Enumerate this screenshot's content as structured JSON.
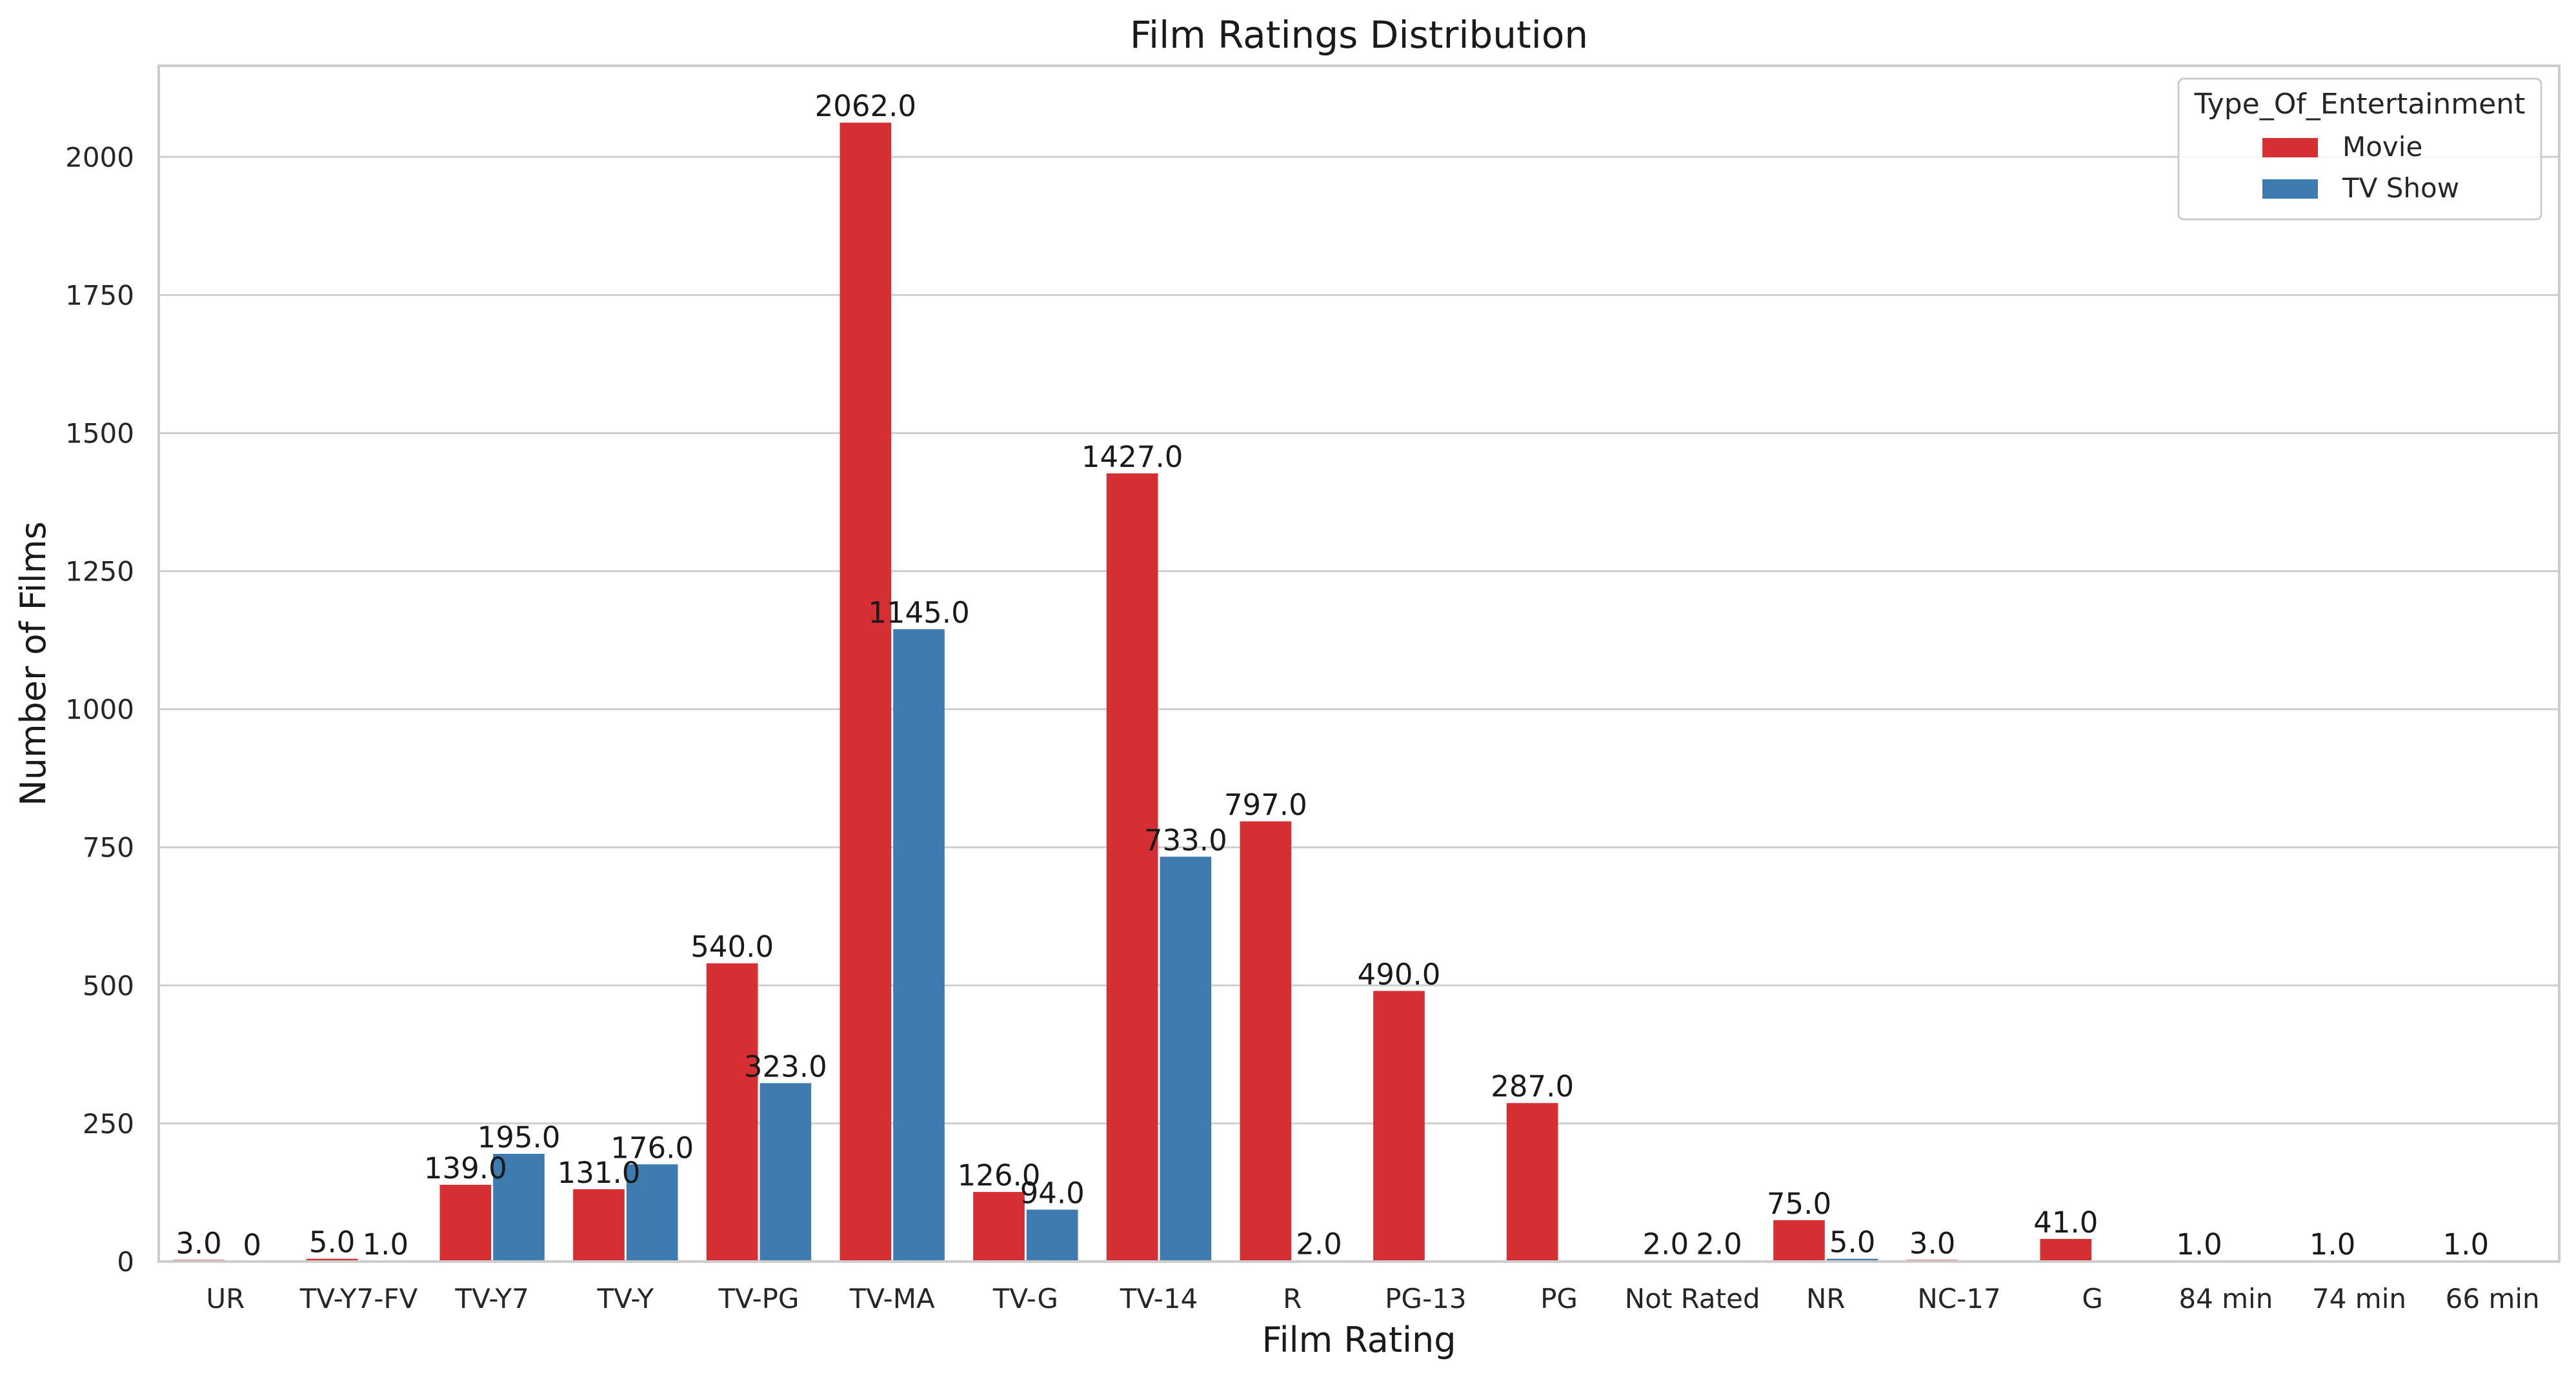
{
  "chart_data": {
    "type": "bar",
    "title": "Film Ratings Distribution",
    "xlabel": "Film Rating",
    "ylabel": "Number of Films",
    "ylim": [
      0,
      2165
    ],
    "yticks": [
      0,
      250,
      500,
      750,
      1000,
      1250,
      1500,
      1750,
      2000
    ],
    "grid": "horizontal",
    "legend": {
      "title": "Type_Of_Entertainment",
      "position": "top-right"
    },
    "categories": [
      "UR",
      "TV-Y7-FV",
      "TV-Y7",
      "TV-Y",
      "TV-PG",
      "TV-MA",
      "TV-G",
      "TV-14",
      "R",
      "PG-13",
      "PG",
      "Not Rated",
      "NR",
      "NC-17",
      "G",
      "84 min",
      "74 min",
      "66 min"
    ],
    "series": [
      {
        "name": "Movie",
        "color": "#d62f33",
        "values": [
          3,
          5,
          139,
          131,
          540,
          2062,
          126,
          1427,
          797,
          490,
          287,
          2,
          75,
          3,
          41,
          1,
          1,
          1
        ],
        "labels": [
          "3.0",
          "5.0",
          "139.0",
          "131.0",
          "540.0",
          "2062.0",
          "126.0",
          "1427.0",
          "797.0",
          "490.0",
          "287.0",
          "2.0",
          "75.0",
          "3.0",
          "41.0",
          "1.0",
          "1.0",
          "1.0"
        ]
      },
      {
        "name": "TV Show",
        "color": "#3d7bb0",
        "values": [
          0,
          1,
          195,
          176,
          323,
          1145,
          94,
          733,
          2,
          null,
          null,
          2,
          5,
          null,
          null,
          null,
          null,
          null
        ],
        "labels": [
          "0",
          "1.0",
          "195.0",
          "176.0",
          "323.0",
          "1145.0",
          "94.0",
          "733.0",
          "2.0",
          null,
          null,
          "2.0",
          "5.0",
          null,
          null,
          null,
          null,
          null
        ]
      }
    ]
  }
}
